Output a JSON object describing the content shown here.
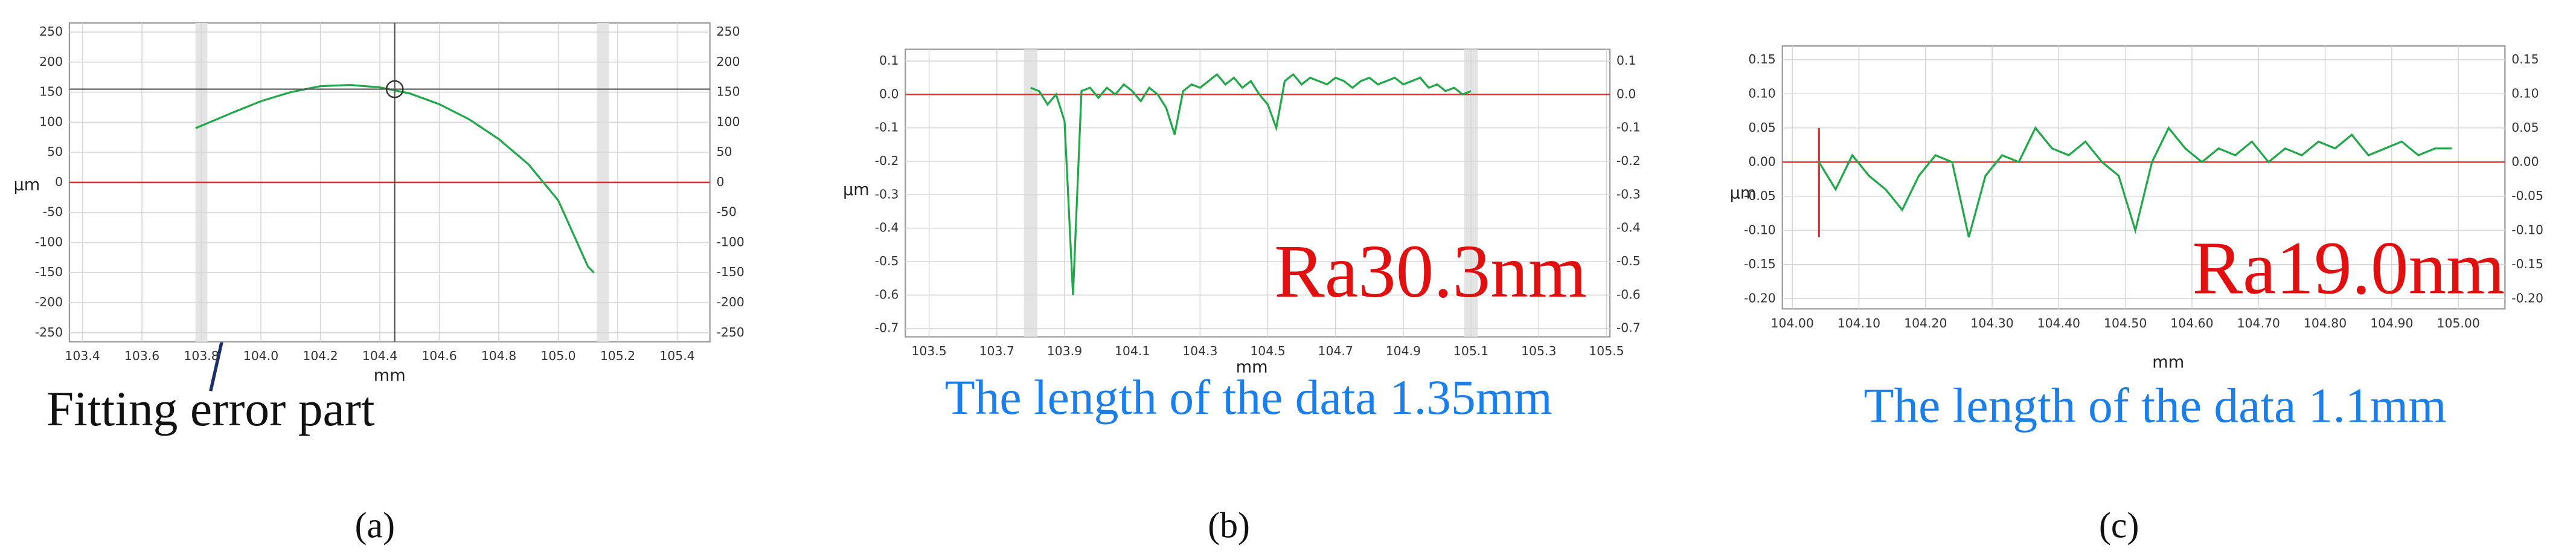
{
  "chart_data": [
    {
      "type": "line",
      "xlabel": "mm",
      "ylabel": "µm",
      "xlim": [
        103.356,
        105.51
      ],
      "ylim": [
        -265,
        265
      ],
      "xticks": [
        103.4,
        103.6,
        103.8,
        {
          "value": 104,
          "label": "104.0"
        },
        104.2,
        104.4,
        104.6,
        104.8,
        {
          "value": 105,
          "label": "105.0"
        },
        105.2,
        105.4
      ],
      "yticks": [
        -250,
        -200,
        -150,
        -100,
        -50,
        0,
        50,
        100,
        150,
        200,
        250
      ],
      "grid": true,
      "hline": 0,
      "bands": [
        [
          103.78,
          103.82
        ],
        [
          105.13,
          105.17
        ]
      ],
      "crosshair": [
        104.45,
        155
      ],
      "x": [
        103.78,
        103.9,
        104.0,
        104.1,
        104.2,
        104.3,
        104.4,
        104.5,
        104.6,
        104.7,
        104.8,
        104.9,
        105.0,
        105.1,
        105.12
      ],
      "series": [
        {
          "color": "#22a84a",
          "values": [
            90,
            115,
            135,
            150,
            160,
            162,
            158,
            148,
            130,
            105,
            72,
            30,
            -30,
            -140,
            -150
          ]
        }
      ],
      "annotation": "Fitting error part",
      "caption": "(a)"
    },
    {
      "type": "line",
      "xlabel": "mm",
      "ylabel": "µm",
      "xlim": [
        103.43,
        105.51
      ],
      "ylim": [
        -0.725,
        0.135
      ],
      "xticks": [
        103.5,
        103.7,
        103.9,
        104.1,
        104.3,
        104.5,
        104.7,
        104.9,
        105.1,
        105.3,
        105.5
      ],
      "yticks": [
        0.1,
        {
          "value": 0,
          "label": "0.0"
        },
        -0.1,
        -0.2,
        -0.3,
        -0.4,
        -0.5,
        -0.6,
        -0.7
      ],
      "grid": true,
      "hline": 0,
      "bands": [
        [
          103.78,
          103.82
        ],
        [
          105.08,
          105.12
        ]
      ],
      "x": [
        103.8,
        103.825,
        103.85,
        103.875,
        103.9,
        103.925,
        103.95,
        103.975,
        104.0,
        104.025,
        104.05,
        104.075,
        104.1,
        104.125,
        104.15,
        104.175,
        104.2,
        104.225,
        104.25,
        104.275,
        104.3,
        104.325,
        104.35,
        104.375,
        104.4,
        104.425,
        104.45,
        104.475,
        104.5,
        104.525,
        104.55,
        104.575,
        104.6,
        104.625,
        104.65,
        104.675,
        104.7,
        104.725,
        104.75,
        104.775,
        104.8,
        104.825,
        104.85,
        104.875,
        104.9,
        104.925,
        104.95,
        104.975,
        105.0,
        105.025,
        105.05,
        105.075,
        105.1
      ],
      "series": [
        {
          "color": "#22a84a",
          "values": [
            0.02,
            0.01,
            -0.03,
            0.0,
            -0.08,
            -0.6,
            0.01,
            0.02,
            -0.01,
            0.02,
            0.0,
            0.03,
            0.01,
            -0.02,
            0.02,
            0.0,
            -0.04,
            -0.12,
            0.01,
            0.03,
            0.02,
            0.04,
            0.06,
            0.03,
            0.05,
            0.02,
            0.04,
            0.0,
            -0.03,
            -0.1,
            0.04,
            0.06,
            0.03,
            0.05,
            0.04,
            0.03,
            0.05,
            0.04,
            0.02,
            0.04,
            0.05,
            0.03,
            0.04,
            0.05,
            0.03,
            0.04,
            0.05,
            0.02,
            0.03,
            0.01,
            0.02,
            0.0,
            0.01
          ]
        }
      ],
      "annotation": "Ra30.3nm",
      "note": "The length of the data 1.35mm",
      "caption": "(b)"
    },
    {
      "type": "line",
      "xlabel": "mm",
      "ylabel": "µm",
      "xlim": [
        103.985,
        105.07
      ],
      "ylim": [
        -0.215,
        0.17
      ],
      "xticks": [
        {
          "value": 104,
          "label": "104.00"
        },
        {
          "value": 104.1,
          "label": "104.10"
        },
        {
          "value": 104.2,
          "label": "104.20"
        },
        {
          "value": 104.3,
          "label": "104.30"
        },
        {
          "value": 104.4,
          "label": "104.40"
        },
        {
          "value": 104.5,
          "label": "104.50"
        },
        {
          "value": 104.6,
          "label": "104.60"
        },
        {
          "value": 104.7,
          "label": "104.70"
        },
        {
          "value": 104.8,
          "label": "104.80"
        },
        {
          "value": 104.9,
          "label": "104.90"
        },
        {
          "value": 105,
          "label": "105.00"
        }
      ],
      "yticks": [
        0.15,
        {
          "value": 0.1,
          "label": "0.10"
        },
        0.05,
        {
          "value": 0,
          "label": "0.00"
        },
        -0.05,
        {
          "value": -0.1,
          "label": "-0.10"
        },
        -0.15,
        {
          "value": -0.2,
          "label": "-0.20"
        }
      ],
      "grid": true,
      "hline": 0,
      "vline": {
        "x": 104.04,
        "y": [
          -0.11,
          0.05
        ]
      },
      "x": [
        104.04,
        104.065,
        104.09,
        104.115,
        104.14,
        104.165,
        104.19,
        104.215,
        104.24,
        104.265,
        104.29,
        104.315,
        104.34,
        104.365,
        104.39,
        104.415,
        104.44,
        104.465,
        104.49,
        104.515,
        104.54,
        104.565,
        104.59,
        104.615,
        104.64,
        104.665,
        104.69,
        104.715,
        104.74,
        104.765,
        104.79,
        104.815,
        104.84,
        104.865,
        104.89,
        104.915,
        104.94,
        104.965,
        104.99
      ],
      "series": [
        {
          "color": "#22a84a",
          "values": [
            0.0,
            -0.04,
            0.01,
            -0.02,
            -0.04,
            -0.07,
            -0.02,
            0.01,
            0.0,
            -0.11,
            -0.02,
            0.01,
            0.0,
            0.05,
            0.02,
            0.01,
            0.03,
            0.0,
            -0.02,
            -0.1,
            0.0,
            0.05,
            0.02,
            0.0,
            0.02,
            0.01,
            0.03,
            0.0,
            0.02,
            0.01,
            0.03,
            0.02,
            0.04,
            0.01,
            0.02,
            0.03,
            0.01,
            0.02,
            0.02
          ]
        }
      ],
      "annotation": "Ra19.0nm",
      "note": "The length of the data 1.1mm",
      "caption": "(c)"
    }
  ]
}
